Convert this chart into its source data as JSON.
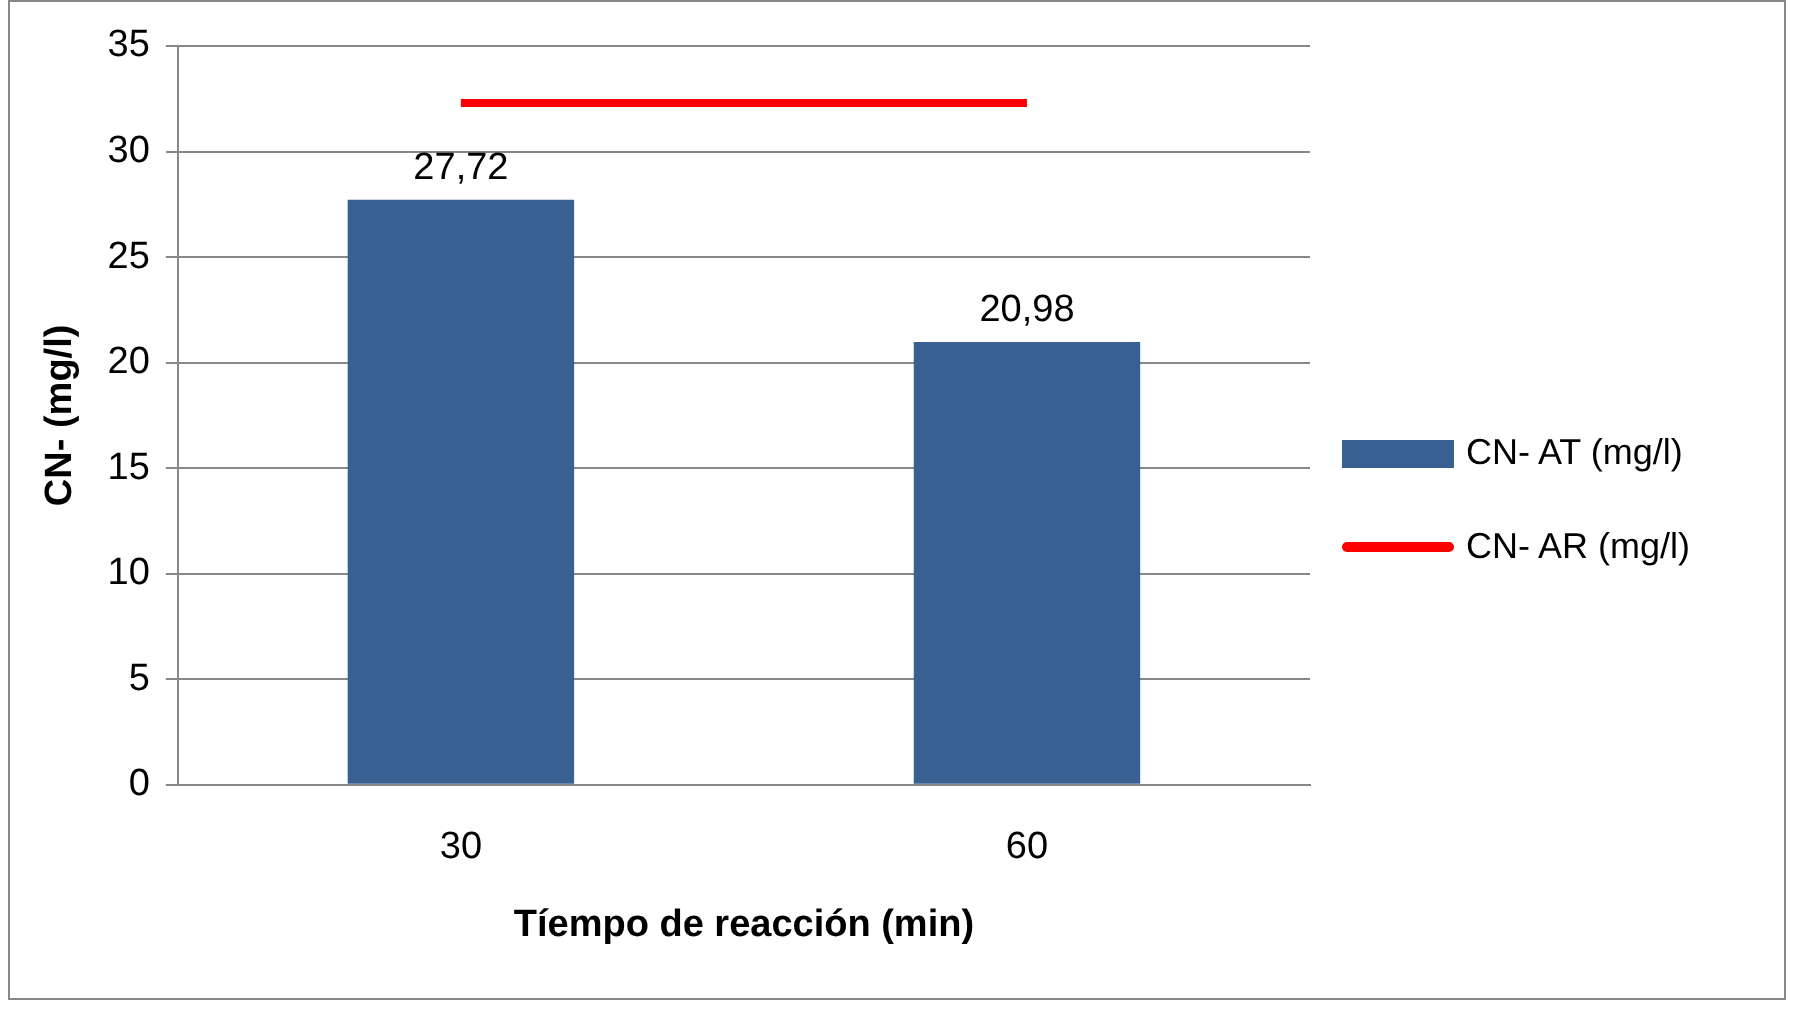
{
  "chart_data": {
    "type": "bar",
    "xlabel": "Tíempo de reacción (min)",
    "ylabel": "CN- (mg/l)",
    "categories": [
      "30",
      "60"
    ],
    "series": [
      {
        "name": "CN- AT (mg/l)",
        "color": "#386192",
        "values": [
          27.72,
          20.98
        ],
        "value_labels": [
          "27,72",
          "20,98"
        ]
      },
      {
        "name": "CN- AR (mg/l)",
        "color": "#ff0000",
        "values": [
          32.3,
          32.3
        ],
        "type": "line",
        "marker": "none"
      }
    ],
    "ylim": [
      0,
      35
    ],
    "yticks": [
      0,
      5,
      10,
      15,
      20,
      25,
      30,
      35
    ],
    "grid": "y",
    "legend": "right"
  }
}
